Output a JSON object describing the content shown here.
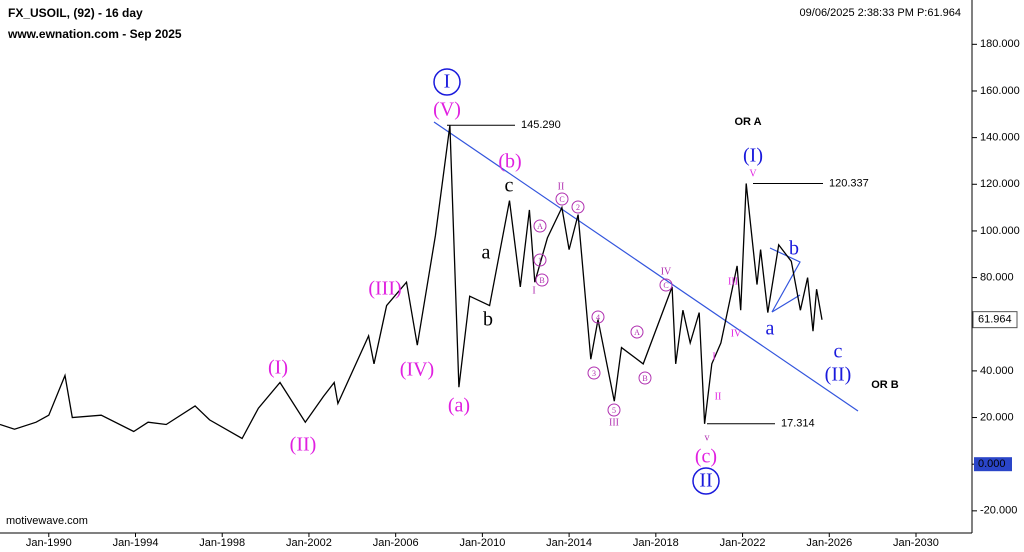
{
  "chart_data": {
    "type": "line",
    "title": "FX_USOIL, (92) - 16 day",
    "subtitle": "www.ewnation.com  - Sep 2025",
    "timestamp": "09/06/2025 2:38:33 PM  P:61.964",
    "footer": "motivewave.com",
    "color": "#000000",
    "x": [
      "1987-10",
      "1988-06",
      "1989-06",
      "1990-01",
      "1990-10",
      "1991-02",
      "1992-06",
      "1993-12",
      "1994-08",
      "1995-06",
      "1996-10",
      "1997-06",
      "1998-12",
      "1999-09",
      "2000-09",
      "2001-11",
      "2002-09",
      "2003-03",
      "2003-05",
      "2004-10",
      "2005-01",
      "2005-08",
      "2006-07",
      "2007-01",
      "2007-11",
      "2008-07",
      "2008-12",
      "2009-06",
      "2010-05",
      "2011-04",
      "2011-10",
      "2012-03",
      "2012-06",
      "2013-01",
      "2013-09",
      "2014-01",
      "2014-06",
      "2015-01",
      "2015-05",
      "2016-02",
      "2016-06",
      "2017-06",
      "2018-10",
      "2018-12",
      "2019-04",
      "2019-08",
      "2020-01",
      "2020-04",
      "2020-08",
      "2021-01",
      "2021-10",
      "2021-12",
      "2022-03",
      "2022-09",
      "2022-11",
      "2023-03",
      "2023-09",
      "2024-04",
      "2024-09",
      "2025-01",
      "2025-04",
      "2025-06",
      "2025-09"
    ],
    "values": [
      17,
      15,
      18,
      21,
      38,
      20,
      21,
      14,
      18,
      17,
      25,
      19,
      11,
      24,
      35,
      18,
      29,
      35,
      26,
      55,
      43,
      68,
      78,
      51,
      98,
      145.29,
      33,
      72,
      68,
      113,
      76,
      109,
      78,
      97,
      110,
      92,
      107,
      45,
      62,
      27,
      50,
      43,
      76,
      43,
      66,
      52,
      65,
      17.314,
      43,
      52,
      85,
      66,
      120.337,
      77,
      92,
      65,
      94,
      87,
      66,
      80,
      57,
      75,
      61.964
    ],
    "xlim": [
      "1987-10",
      "2032-08"
    ],
    "xticks": [
      {
        "value": "1990-01",
        "label": "Jan-1990"
      },
      {
        "value": "1994-01",
        "label": "Jan-1994"
      },
      {
        "value": "1998-01",
        "label": "Jan-1998"
      },
      {
        "value": "2002-01",
        "label": "Jan-2002"
      },
      {
        "value": "2006-01",
        "label": "Jan-2006"
      },
      {
        "value": "2010-01",
        "label": "Jan-2010"
      },
      {
        "value": "2014-01",
        "label": "Jan-2014"
      },
      {
        "value": "2018-01",
        "label": "Jan-2018"
      },
      {
        "value": "2022-01",
        "label": "Jan-2022"
      },
      {
        "value": "2026-01",
        "label": "Jan-2026"
      },
      {
        "value": "2030-01",
        "label": "Jan-2030"
      }
    ],
    "ylim": [
      -29.5,
      199
    ],
    "yticks": [
      {
        "value": 180,
        "label": "180.000"
      },
      {
        "value": 160,
        "label": "160.000"
      },
      {
        "value": 140,
        "label": "140.000"
      },
      {
        "value": 120,
        "label": "120.000"
      },
      {
        "value": 100,
        "label": "100.000"
      },
      {
        "value": 80,
        "label": "80.000"
      },
      {
        "value": 60,
        "label": "60.000"
      },
      {
        "value": 40,
        "label": "40.000"
      },
      {
        "value": 20,
        "label": "20.000"
      },
      {
        "value": 0,
        "label": "0.000"
      },
      {
        "value": -20,
        "label": "-20.000"
      }
    ],
    "current_price": {
      "value": 61.964,
      "label": "61.964"
    },
    "levels": [
      {
        "value": 145.29,
        "label": "145.290"
      },
      {
        "value": 120.337,
        "label": "120.337"
      },
      {
        "value": 17.314,
        "label": "17.314"
      }
    ],
    "annotations": [
      {
        "text": "I",
        "color": "#1a1adc",
        "circled": true
      },
      {
        "text": "(V)",
        "color": "#e020e0"
      },
      {
        "text": "(b)",
        "color": "#e020e0"
      },
      {
        "text": "c",
        "color": "#000000"
      },
      {
        "text": "a",
        "color": "#000000"
      },
      {
        "text": "b",
        "color": "#000000"
      },
      {
        "text": "(III)",
        "color": "#e020e0"
      },
      {
        "text": "(I)",
        "color": "#e020e0"
      },
      {
        "text": "(II)",
        "color": "#e020e0"
      },
      {
        "text": "(IV)",
        "color": "#e020e0"
      },
      {
        "text": "(a)",
        "color": "#e020e0"
      },
      {
        "text": "(c)",
        "color": "#e020e0"
      },
      {
        "text": "II",
        "color": "#1a1adc",
        "circled": true
      },
      {
        "text": "(I)",
        "color": "#1a1adc"
      },
      {
        "text": "a",
        "color": "#1a1adc"
      },
      {
        "text": "b",
        "color": "#1a1adc"
      },
      {
        "text": "c",
        "color": "#1a1adc"
      },
      {
        "text": "(II)",
        "color": "#1a1adc"
      },
      {
        "text": "II",
        "color": "#b030b0",
        "small": true
      },
      {
        "text": "C",
        "color": "#b030b0",
        "small": true,
        "circled": true
      },
      {
        "text": "2",
        "color": "#b030b0",
        "small": true,
        "circled": true
      },
      {
        "text": "A",
        "color": "#b030b0",
        "small": true,
        "circled": true
      },
      {
        "text": "1",
        "color": "#b030b0",
        "small": true,
        "circled": true
      },
      {
        "text": "B",
        "color": "#b030b0",
        "small": true,
        "circled": true
      },
      {
        "text": "I",
        "color": "#b030b0",
        "small": true
      },
      {
        "text": "4",
        "color": "#b030b0",
        "small": true,
        "circled": true
      },
      {
        "text": "3",
        "color": "#b030b0",
        "small": true,
        "circled": true
      },
      {
        "text": "5",
        "color": "#b030b0",
        "small": true,
        "circled": true
      },
      {
        "text": "III",
        "color": "#b030b0",
        "small": true
      },
      {
        "text": "A",
        "color": "#b030b0",
        "small": true,
        "circled": true
      },
      {
        "text": "B",
        "color": "#b030b0",
        "small": true,
        "circled": true
      },
      {
        "text": "IV",
        "color": "#b030b0",
        "small": true
      },
      {
        "text": "C",
        "color": "#b030b0",
        "small": true,
        "circled": true
      },
      {
        "text": "V",
        "color": "#e020e0",
        "small": true
      },
      {
        "text": "III",
        "color": "#e020e0",
        "small": true
      },
      {
        "text": "IV",
        "color": "#e020e0",
        "small": true
      },
      {
        "text": "I",
        "color": "#e020e0",
        "small": true
      },
      {
        "text": "II",
        "color": "#e020e0",
        "small": true
      },
      {
        "text": "v",
        "color": "#b030b0",
        "small": true
      },
      {
        "text": "OR A",
        "color": "#000000",
        "label": true
      },
      {
        "text": "OR B",
        "color": "#000000",
        "label": true
      }
    ]
  }
}
